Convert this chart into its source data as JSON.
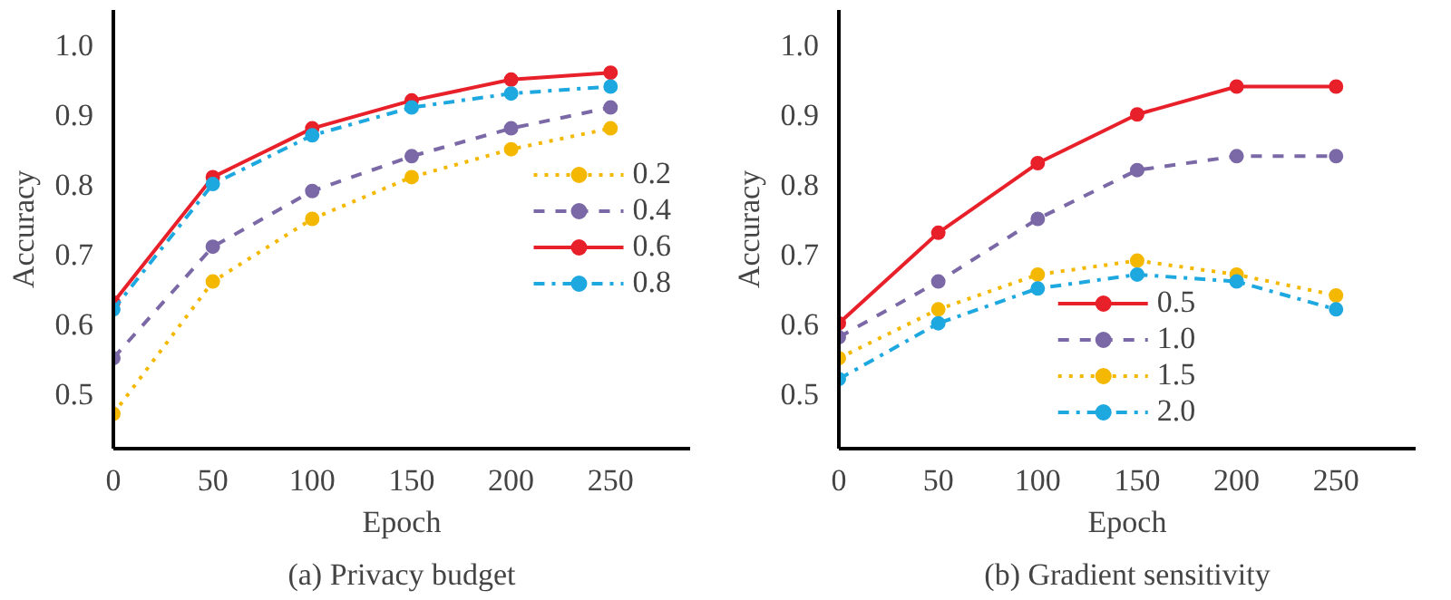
{
  "chart_data": [
    {
      "type": "line",
      "title": "(a) Privacy budget",
      "xlabel": "Epoch",
      "ylabel": "Accuracy",
      "x": [
        0,
        50,
        100,
        150,
        200,
        250
      ],
      "xlim": [
        0,
        290
      ],
      "ylim": [
        0.42,
        1.05
      ],
      "xticks": [
        0,
        50,
        100,
        150,
        200,
        250
      ],
      "yticks": [
        0.5,
        0.6,
        0.7,
        0.8,
        0.9,
        {
          "value": 1.0,
          "label": "1.0"
        }
      ],
      "grid": false,
      "legend": "right",
      "marker": "circle",
      "series": [
        {
          "name": "0.2",
          "color": "#f5b800",
          "line_style": "dotted",
          "values": [
            0.47,
            0.66,
            0.75,
            0.81,
            0.85,
            0.88
          ]
        },
        {
          "name": "0.4",
          "color": "#7b68a6",
          "line_style": "dashed",
          "values": [
            0.55,
            0.71,
            0.79,
            0.84,
            0.88,
            0.91
          ]
        },
        {
          "name": "0.6",
          "color": "#e8202a",
          "line_style": "solid",
          "values": [
            0.63,
            0.81,
            0.88,
            0.92,
            0.95,
            0.96
          ]
        },
        {
          "name": "0.8",
          "color": "#1ea8e0",
          "line_style": "dashdot",
          "values": [
            0.62,
            0.8,
            0.87,
            0.91,
            0.93,
            0.94
          ]
        }
      ]
    },
    {
      "type": "line",
      "title": "(b) Gradient sensitivity",
      "xlabel": "Epoch",
      "ylabel": "Accuracy",
      "x": [
        0,
        50,
        100,
        150,
        200,
        250
      ],
      "xlim": [
        0,
        290
      ],
      "ylim": [
        0.42,
        1.05
      ],
      "xticks": [
        0,
        50,
        100,
        150,
        200,
        250
      ],
      "yticks": [
        0.5,
        0.6,
        0.7,
        0.8,
        0.9,
        {
          "value": 1.0,
          "label": "1.0"
        }
      ],
      "grid": false,
      "legend": "bottom",
      "marker": "circle",
      "series": [
        {
          "name": "0.5",
          "color": "#e8202a",
          "line_style": "solid",
          "values": [
            0.6,
            0.73,
            0.83,
            0.9,
            0.94,
            0.94
          ]
        },
        {
          "name": "1.0",
          "color": "#7b68a6",
          "line_style": "dashed",
          "values": [
            0.58,
            0.66,
            0.75,
            0.82,
            0.84,
            0.84
          ]
        },
        {
          "name": "1.5",
          "color": "#f5b800",
          "line_style": "dotted",
          "values": [
            0.55,
            0.62,
            0.67,
            0.69,
            0.67,
            0.64
          ]
        },
        {
          "name": "2.0",
          "color": "#1ea8e0",
          "line_style": "dashdot",
          "values": [
            0.52,
            0.6,
            0.65,
            0.67,
            0.66,
            0.62
          ]
        }
      ]
    }
  ]
}
